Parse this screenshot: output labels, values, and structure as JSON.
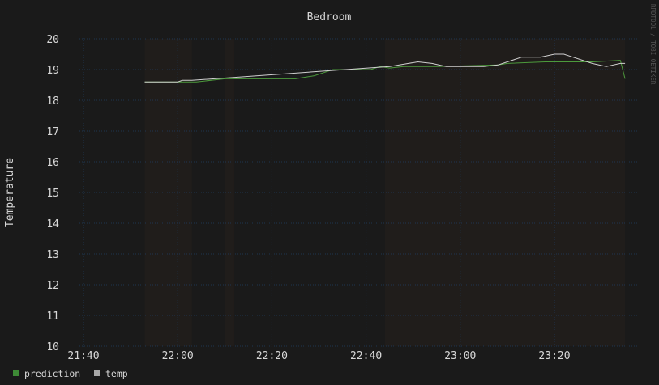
{
  "chart_data": {
    "type": "line",
    "title": "Bedroom",
    "ylabel": "Temperature",
    "xlabel": "",
    "watermark": "RRDTOOL / TOBI OETIKER",
    "ylim": [
      10,
      20
    ],
    "yticks": [
      10,
      11,
      12,
      13,
      14,
      15,
      16,
      17,
      18,
      19,
      20
    ],
    "xlim": [
      "21:38",
      "23:35"
    ],
    "xticks": [
      "21:40",
      "22:00",
      "22:20",
      "22:40",
      "23:00",
      "23:20"
    ],
    "grid": true,
    "legend_position": "bottom-left",
    "shaded_intervals": [
      [
        "21:53",
        "22:03"
      ],
      [
        "22:10",
        "22:12"
      ],
      [
        "22:44",
        "23:35"
      ]
    ],
    "series": [
      {
        "name": "prediction",
        "color": "#4c9a3c",
        "points": [
          [
            "21:53",
            18.6
          ],
          [
            "22:04",
            18.6
          ],
          [
            "22:10",
            18.7
          ],
          [
            "22:25",
            18.7
          ],
          [
            "22:27",
            18.75
          ],
          [
            "22:29",
            18.8
          ],
          [
            "22:31",
            18.9
          ],
          [
            "22:33",
            19.0
          ],
          [
            "22:41",
            19.0
          ],
          [
            "22:43",
            19.1
          ],
          [
            "22:45",
            19.05
          ],
          [
            "22:48",
            19.1
          ],
          [
            "22:55",
            19.1
          ],
          [
            "23:08",
            19.15
          ],
          [
            "23:10",
            19.2
          ],
          [
            "23:18",
            19.25
          ],
          [
            "23:28",
            19.25
          ],
          [
            "23:34",
            19.3
          ],
          [
            "23:35",
            18.7
          ]
        ]
      },
      {
        "name": "temp",
        "color": "#d0d0d0",
        "points": [
          [
            "21:53",
            18.6
          ],
          [
            "22:00",
            18.6
          ],
          [
            "22:01",
            18.65
          ],
          [
            "22:03",
            18.65
          ],
          [
            "22:45",
            19.1
          ],
          [
            "22:49",
            19.2
          ],
          [
            "22:51",
            19.25
          ],
          [
            "22:54",
            19.2
          ],
          [
            "22:57",
            19.1
          ],
          [
            "23:05",
            19.1
          ],
          [
            "23:08",
            19.15
          ],
          [
            "23:10",
            19.25
          ],
          [
            "23:13",
            19.4
          ],
          [
            "23:17",
            19.4
          ],
          [
            "23:20",
            19.5
          ],
          [
            "23:22",
            19.5
          ],
          [
            "23:24",
            19.4
          ],
          [
            "23:26",
            19.3
          ],
          [
            "23:28",
            19.2
          ],
          [
            "23:31",
            19.1
          ],
          [
            "23:34",
            19.2
          ],
          [
            "23:35",
            19.2
          ]
        ]
      }
    ]
  }
}
